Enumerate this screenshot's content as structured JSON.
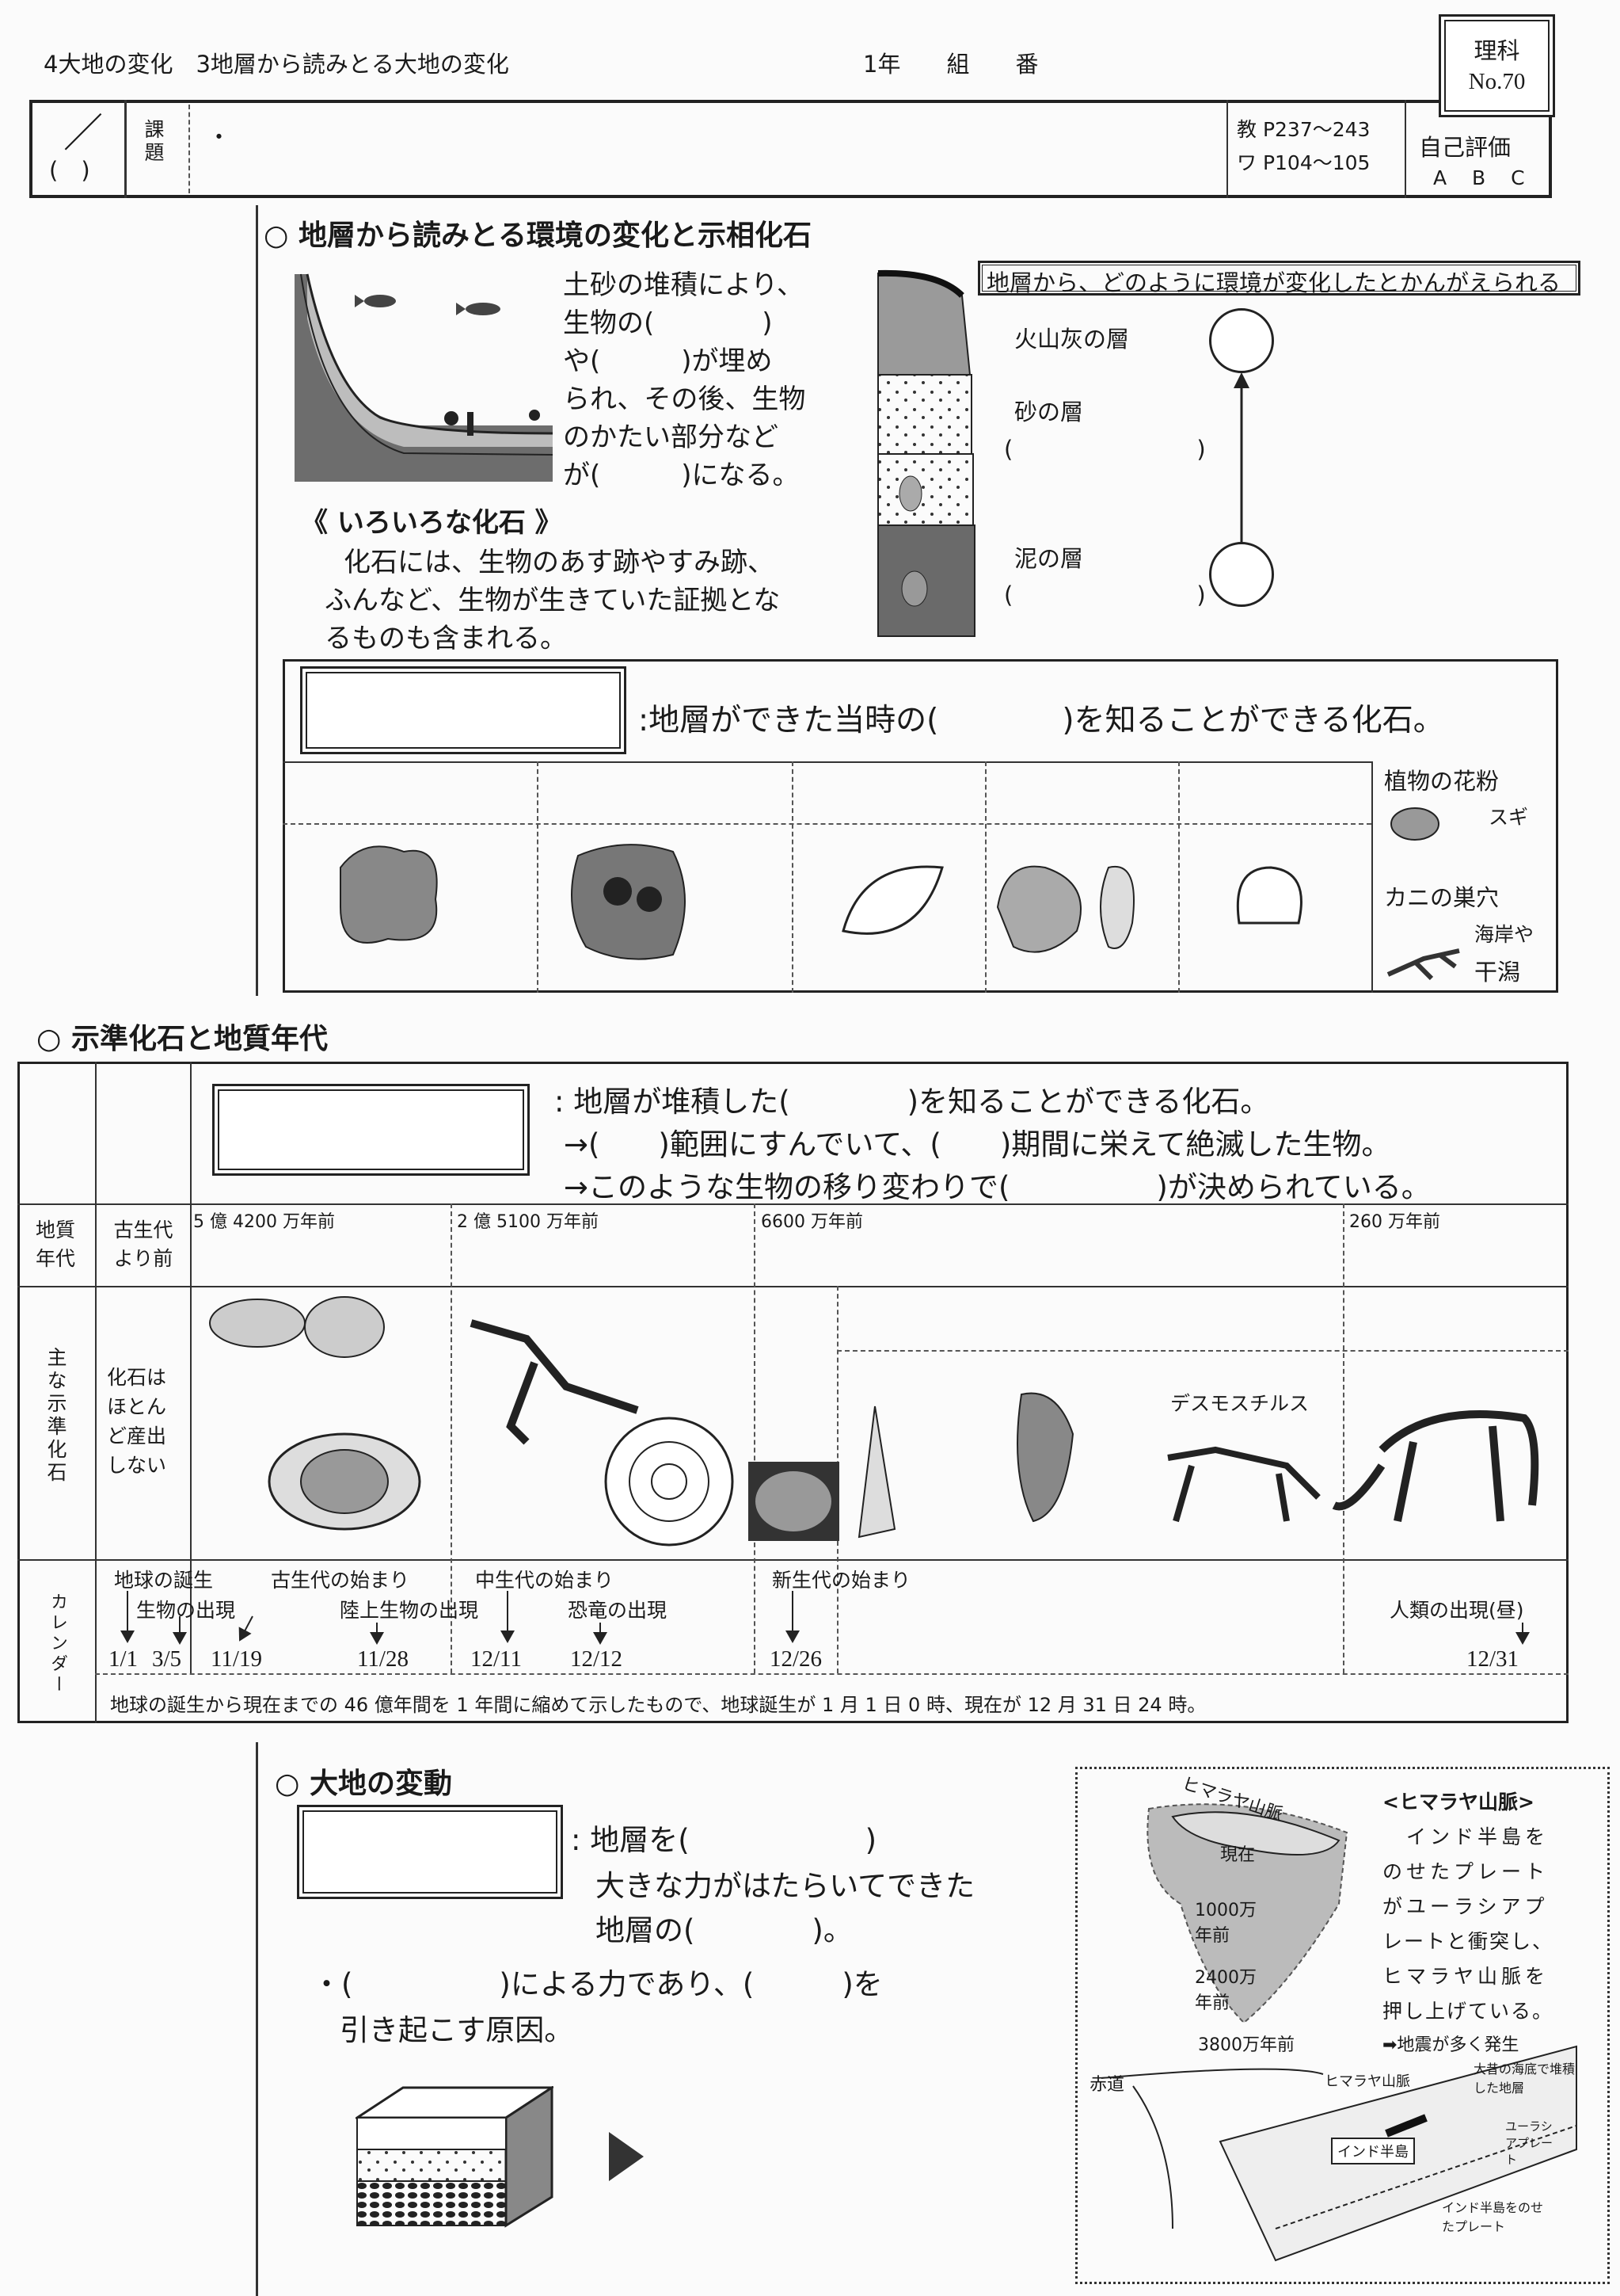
{
  "header": {
    "unit_title": "4大地の変化　3地層から読みとる大地の変化",
    "class_fields": "1年　　組　　番",
    "subject": "理科",
    "number": "No.70",
    "date_slash": "／",
    "date_paren": "(　)",
    "kadai_label": "課題",
    "kadai_dot": "・",
    "textbook_pages": "教 P237～243",
    "workbook_pages": "ワ P104～105",
    "self_eval_label": "自己評価",
    "self_eval_options": "A B C"
  },
  "section1": {
    "heading": "○ 地層から読みとる環境の変化と示相化石",
    "intro_lines": [
      "土砂の堆積により、",
      "生物の(　　　　)",
      "や(　　　)が埋め",
      "られ、その後、生物",
      "のかたい部分など",
      "が(　　　)になる。"
    ],
    "various_title": "《 いろいろな化石 》",
    "various_lines": [
      "　化石には、生物のあす跡やすみ跡、",
      "ふんなど、生物が生きていた証拠とな",
      "るものも含まれる。"
    ],
    "env_box_title": "地層から、どのように環境が変化したとかんがえられる",
    "layers": {
      "ash": "火山灰の層",
      "sand": "砂の層",
      "sand_blank": "(　　　　　　　　)",
      "mud": "泥の層",
      "mud_blank": "(　　　　　　　　)"
    },
    "facies_def": ":地層ができた当時の(　　　　)を知ることができる化石。",
    "pollen_label": "植物の花粉",
    "pollen_example": "スギ",
    "crab_label": "カニの巣穴",
    "crab_place_1": "海岸や",
    "crab_place_2": "干潟"
  },
  "section2": {
    "heading": "○ 示準化石と地質年代",
    "def_lines": [
      ": 地層が堆積した(　　　　)を知ることができる化石。",
      "→(　　)範囲にすんでいて、(　　)期間に栄えて絶滅した生物。",
      "→このような生物の移り変わりで(　　　　　)が決められている。"
    ],
    "row_era_label": "地質年代",
    "pre_paleozoic": "古生代より前",
    "era_starts": [
      "5 億 4200 万年前",
      "2 億 5100 万年前",
      "6600 万年前",
      "260 万年前"
    ],
    "row_fossil_label": "主な示準化石",
    "no_fossils": "化石はほとんど産出しない",
    "desmostylus": "デスモスチルス",
    "row_calendar_label": "カレンダー",
    "events_top": [
      "地球の誕生",
      "古生代の始まり",
      "中生代の始まり",
      "新生代の始まり"
    ],
    "events_bottom": [
      "生物の出現",
      "陸上生物の出現",
      "恐竜の出現",
      "人類の出現(昼)"
    ],
    "dates": [
      "1/1",
      "3/5",
      "11/19",
      "11/28",
      "12/11",
      "12/12",
      "12/26",
      "12/31"
    ],
    "calendar_note": "地球の誕生から現在までの 46 億年間を 1 年間に縮めて示したもので、地球誕生が 1 月 1 日 0 時、現在が 12 月 31 日 24 時。"
  },
  "section3": {
    "heading": "○ 大地の変動",
    "def_line1": ": 地層を(　　　　　　)",
    "def_line2": "大きな力がはたらいてできた",
    "def_line3": "地層の(　　　　)。",
    "cause_line1": "・(　　　　　)による力であり、(　　　)を",
    "cause_line2": "引き起こす原因。",
    "himalaya_title": "<ヒマラヤ山脈>",
    "himalaya_lines": [
      "　インド半島を",
      "のせたプレート",
      "がユーラシアプ",
      "レートと衝突し、",
      "ヒマラヤ山脈を",
      "押し上げている。",
      "➡地震が多く発生"
    ],
    "map_labels": {
      "himalaya": "ヒマラヤ山脈",
      "now": "現在",
      "m10": "1000万年前",
      "m24": "2400万年前",
      "m38": "3800万年前",
      "equator": "赤道",
      "himalaya2": "ヒマラヤ山脈",
      "old_sea": "大昔の海底で堆積した地層",
      "eurasia": "ユーラシアプレート",
      "india": "インド半島",
      "india_plate": "インド半島をのせたプレート"
    }
  }
}
